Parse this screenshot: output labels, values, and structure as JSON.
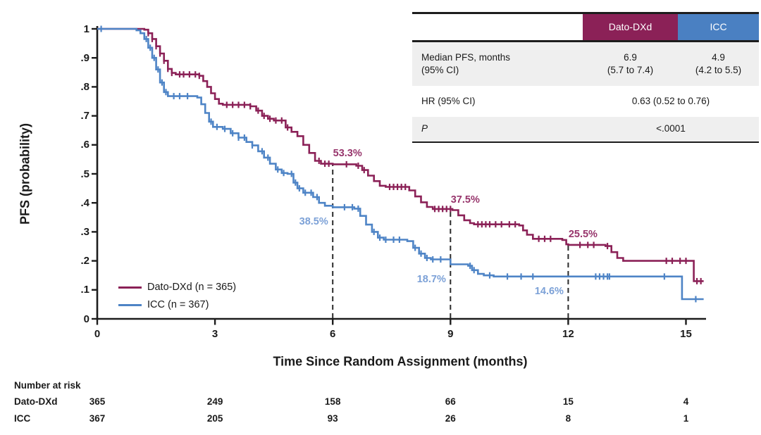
{
  "figure_colors": {
    "dato": "#8B2157",
    "icc": "#4E84C6",
    "dato_label": "#97356C",
    "icc_label": "#7CA1D7",
    "axis": "#1d1d1d",
    "dashed_line": "#2b2b2b",
    "table_zebra": "#EFEFEF"
  },
  "legend": {
    "items": [
      {
        "key": "dato",
        "label": "Dato-DXd (n = 365)",
        "color": "#8B2157"
      },
      {
        "key": "icc",
        "label": "ICC (n = 367)",
        "color": "#4E84C6"
      }
    ]
  },
  "summary_table": {
    "header": {
      "blank": "",
      "dato": "Dato-DXd",
      "icc": "ICC",
      "dato_bg": "#8B2157",
      "icc_bg": "#4A80C2"
    },
    "row_median": {
      "label_line1": "Median PFS, months",
      "label_line2": "(95% CI)",
      "dato_line1": "6.9",
      "dato_line2": "(5.7 to 7.4)",
      "icc_line1": "4.9",
      "icc_line2": "(4.2 to 5.5)"
    },
    "row_hr": {
      "label": "HR (95% CI)",
      "value": "0.63 (0.52 to 0.76)"
    },
    "row_p": {
      "label": "P",
      "value": "<.0001"
    }
  },
  "number_at_risk": {
    "title": "Number at risk",
    "times": [
      0,
      3,
      6,
      9,
      12,
      15
    ],
    "rows": [
      {
        "label": "Dato-DXd",
        "values": [
          "365",
          "249",
          "158",
          "66",
          "15",
          "4"
        ]
      },
      {
        "label": "ICC",
        "values": [
          "367",
          "205",
          "93",
          "26",
          "8",
          "1"
        ]
      }
    ]
  },
  "chart_data": {
    "type": "line",
    "subtype": "kaplan-meier-step",
    "title": "",
    "xlabel": "Time Since Random Assignment (months)",
    "ylabel": "PFS (probability)",
    "xlim": [
      0,
      15.5
    ],
    "ylim": [
      0,
      1
    ],
    "grid": false,
    "legend_position": "lower-left-inside",
    "xticks": [
      0,
      3,
      6,
      9,
      12,
      15
    ],
    "yticks": [
      {
        "v": 1.0,
        "label": "1"
      },
      {
        "v": 0.9,
        "label": ".9"
      },
      {
        "v": 0.8,
        "label": ".8"
      },
      {
        "v": 0.7,
        "label": ".7"
      },
      {
        "v": 0.6,
        "label": ".6"
      },
      {
        "v": 0.5,
        "label": ".5"
      },
      {
        "v": 0.4,
        "label": ".4"
      },
      {
        "v": 0.3,
        "label": ".3"
      },
      {
        "v": 0.2,
        "label": ".2"
      },
      {
        "v": 0.1,
        "label": ".1"
      },
      {
        "v": 0.0,
        "label": "0"
      }
    ],
    "series": [
      {
        "key": "dato",
        "name": "Dato-DXd (n = 365)",
        "color": "#8B2157",
        "label_color": "#97356C",
        "steps": [
          [
            0,
            1
          ],
          [
            1.2,
            0.997
          ],
          [
            1.3,
            0.985
          ],
          [
            1.4,
            0.965
          ],
          [
            1.5,
            0.94
          ],
          [
            1.6,
            0.915
          ],
          [
            1.7,
            0.89
          ],
          [
            1.8,
            0.862
          ],
          [
            1.9,
            0.848
          ],
          [
            2.0,
            0.843
          ],
          [
            2.6,
            0.838
          ],
          [
            2.7,
            0.82
          ],
          [
            2.8,
            0.8
          ],
          [
            2.9,
            0.778
          ],
          [
            3.0,
            0.758
          ],
          [
            3.1,
            0.742
          ],
          [
            3.2,
            0.738
          ],
          [
            3.9,
            0.733
          ],
          [
            4.05,
            0.718
          ],
          [
            4.2,
            0.7
          ],
          [
            4.35,
            0.69
          ],
          [
            4.5,
            0.684
          ],
          [
            4.8,
            0.66
          ],
          [
            4.95,
            0.645
          ],
          [
            5.1,
            0.63
          ],
          [
            5.25,
            0.6
          ],
          [
            5.4,
            0.572
          ],
          [
            5.55,
            0.545
          ],
          [
            5.7,
            0.535
          ],
          [
            6.0,
            0.533
          ],
          [
            6.6,
            0.528
          ],
          [
            6.75,
            0.513
          ],
          [
            6.9,
            0.494
          ],
          [
            7.05,
            0.475
          ],
          [
            7.2,
            0.459
          ],
          [
            7.35,
            0.455
          ],
          [
            7.95,
            0.443
          ],
          [
            8.1,
            0.422
          ],
          [
            8.25,
            0.402
          ],
          [
            8.4,
            0.386
          ],
          [
            8.55,
            0.379
          ],
          [
            9.05,
            0.375
          ],
          [
            9.2,
            0.357
          ],
          [
            9.35,
            0.34
          ],
          [
            9.5,
            0.33
          ],
          [
            9.6,
            0.326
          ],
          [
            10.75,
            0.322
          ],
          [
            10.85,
            0.305
          ],
          [
            10.95,
            0.29
          ],
          [
            11.1,
            0.276
          ],
          [
            11.85,
            0.272
          ],
          [
            11.95,
            0.257
          ],
          [
            12.0,
            0.255
          ],
          [
            12.95,
            0.251
          ],
          [
            13.1,
            0.23
          ],
          [
            13.25,
            0.21
          ],
          [
            13.4,
            0.2
          ],
          [
            15.15,
            0.2
          ],
          [
            15.2,
            0.13
          ],
          [
            15.45,
            0.13
          ]
        ],
        "censor_times": [
          1.3,
          1.4,
          1.5,
          1.6,
          1.7,
          1.8,
          1.9,
          2.1,
          2.2,
          2.35,
          2.5,
          2.6,
          3.3,
          3.45,
          3.6,
          3.75,
          3.9,
          4.1,
          4.25,
          4.4,
          4.55,
          4.7,
          4.85,
          5.65,
          5.8,
          5.9,
          6.35,
          6.65,
          6.8,
          7.45,
          7.55,
          7.65,
          7.75,
          7.85,
          8.6,
          8.7,
          8.8,
          8.9,
          9.0,
          9.7,
          9.8,
          9.9,
          10.0,
          10.15,
          10.3,
          10.5,
          10.65,
          11.25,
          11.4,
          11.55,
          12.3,
          12.5,
          12.65,
          13.0,
          14.5,
          14.65,
          14.85,
          15.0,
          15.28,
          15.38
        ]
      },
      {
        "key": "icc",
        "name": "ICC (n = 367)",
        "color": "#4E84C6",
        "label_color": "#7CA1D7",
        "steps": [
          [
            0,
            1
          ],
          [
            1.0,
            0.995
          ],
          [
            1.1,
            0.985
          ],
          [
            1.2,
            0.965
          ],
          [
            1.3,
            0.935
          ],
          [
            1.4,
            0.9
          ],
          [
            1.5,
            0.86
          ],
          [
            1.6,
            0.815
          ],
          [
            1.7,
            0.782
          ],
          [
            1.8,
            0.768
          ],
          [
            2.55,
            0.763
          ],
          [
            2.65,
            0.74
          ],
          [
            2.75,
            0.71
          ],
          [
            2.85,
            0.68
          ],
          [
            2.95,
            0.662
          ],
          [
            3.2,
            0.655
          ],
          [
            3.4,
            0.64
          ],
          [
            3.6,
            0.625
          ],
          [
            3.8,
            0.61
          ],
          [
            3.95,
            0.598
          ],
          [
            4.1,
            0.578
          ],
          [
            4.25,
            0.556
          ],
          [
            4.4,
            0.535
          ],
          [
            4.55,
            0.515
          ],
          [
            4.7,
            0.503
          ],
          [
            4.85,
            0.5
          ],
          [
            5.0,
            0.47
          ],
          [
            5.1,
            0.45
          ],
          [
            5.25,
            0.435
          ],
          [
            5.5,
            0.42
          ],
          [
            5.65,
            0.4
          ],
          [
            5.8,
            0.39
          ],
          [
            6.0,
            0.385
          ],
          [
            6.55,
            0.38
          ],
          [
            6.7,
            0.355
          ],
          [
            6.85,
            0.325
          ],
          [
            7.0,
            0.3
          ],
          [
            7.15,
            0.28
          ],
          [
            7.3,
            0.273
          ],
          [
            7.9,
            0.268
          ],
          [
            8.05,
            0.245
          ],
          [
            8.2,
            0.225
          ],
          [
            8.35,
            0.21
          ],
          [
            8.5,
            0.205
          ],
          [
            9.0,
            0.188
          ],
          [
            9.45,
            0.183
          ],
          [
            9.55,
            0.168
          ],
          [
            9.7,
            0.155
          ],
          [
            9.85,
            0.15
          ],
          [
            10.1,
            0.146
          ],
          [
            14.85,
            0.146
          ],
          [
            14.9,
            0.068
          ],
          [
            15.45,
            0.068
          ]
        ],
        "censor_times": [
          0.1,
          1.25,
          1.35,
          1.45,
          1.55,
          1.65,
          1.75,
          1.95,
          2.1,
          2.3,
          2.9,
          3.05,
          3.25,
          3.45,
          3.6,
          3.75,
          3.95,
          4.2,
          4.35,
          4.6,
          4.75,
          4.95,
          5.05,
          5.15,
          5.3,
          5.45,
          5.6,
          6.3,
          6.5,
          6.65,
          7.05,
          7.2,
          7.35,
          7.55,
          7.7,
          8.1,
          8.25,
          8.4,
          8.55,
          8.75,
          9.5,
          9.6,
          10.0,
          10.45,
          10.8,
          11.1,
          12.7,
          12.8,
          12.9,
          13.0,
          13.05,
          14.45,
          15.25
        ],
        "censor_early": true
      }
    ],
    "milestones": [
      {
        "t": 6,
        "values": {
          "dato": 0.533,
          "icc": 0.385
        },
        "labels": {
          "dato": "53.3%",
          "icc": "38.5%"
        }
      },
      {
        "t": 9,
        "values": {
          "dato": 0.375,
          "icc": 0.187
        },
        "labels": {
          "dato": "37.5%",
          "icc": "18.7%"
        }
      },
      {
        "t": 12,
        "values": {
          "dato": 0.255,
          "icc": 0.146
        },
        "labels": {
          "dato": "25.5%",
          "icc": "14.6%"
        }
      }
    ]
  }
}
